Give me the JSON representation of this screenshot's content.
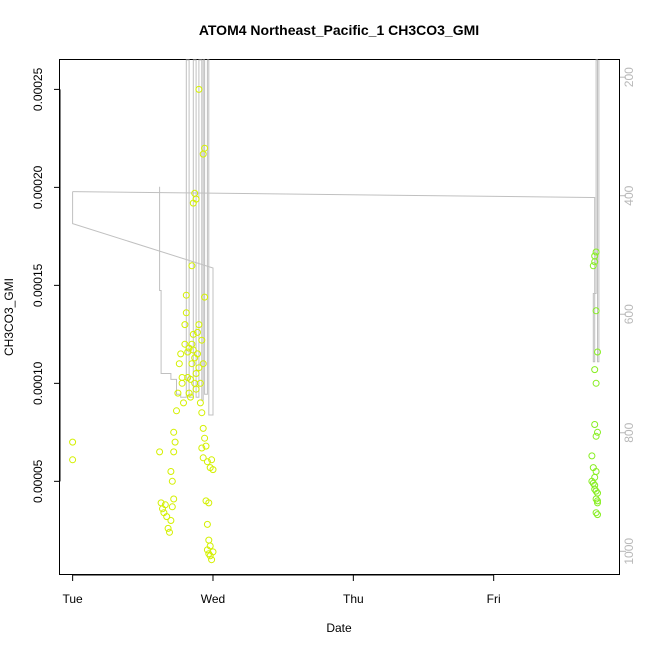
{
  "chart_data": {
    "type": "scatter",
    "title": "ATOM4 Northeast_Pacific_1 CH3CO3_GMI",
    "xlabel": "Date",
    "ylabel": "CH3CO3_GMI",
    "x_ticks": [
      "Tue",
      "Wed",
      "Thu",
      "Fri"
    ],
    "xlim": [
      -0.09,
      3.9
    ],
    "ylim": [
      2.2e-06,
      0.000265
    ],
    "y_ticks": [
      "0.00005",
      "0.00010",
      "0.00015",
      "0.00020",
      "0.00025"
    ],
    "y_tick_values": [
      5e-05,
      0.0001,
      0.00015,
      0.0002,
      0.00025
    ],
    "y2_ticks": [
      "200",
      "400",
      "600",
      "800",
      "1000"
    ],
    "y2_tick_values": [
      200,
      400,
      600,
      800,
      1000
    ],
    "y2lim": [
      1040,
      171
    ],
    "grid": false,
    "colors": {
      "points_a": "#d4f000",
      "points_b": "#86ee20",
      "line": "#c0c0c0"
    },
    "series": [
      {
        "values": [
          [
            0.0,
            7e-05
          ],
          [
            0.0,
            6.1e-05
          ],
          [
            0.62,
            6.5e-05
          ],
          [
            0.63,
            3.9e-05
          ],
          [
            0.64,
            3.6e-05
          ],
          [
            0.65,
            3.4e-05
          ],
          [
            0.66,
            3.8e-05
          ],
          [
            0.67,
            3.2e-05
          ],
          [
            0.68,
            2.6e-05
          ],
          [
            0.69,
            2.4e-05
          ],
          [
            0.7,
            3e-05
          ],
          [
            0.71,
            3.7e-05
          ],
          [
            0.72,
            4.1e-05
          ],
          [
            0.7,
            5.5e-05
          ],
          [
            0.71,
            5e-05
          ],
          [
            0.72,
            6.5e-05
          ],
          [
            0.73,
            7e-05
          ],
          [
            0.72,
            7.5e-05
          ],
          [
            0.74,
            8.6e-05
          ],
          [
            0.75,
            9.5e-05
          ],
          [
            0.76,
            0.00011
          ],
          [
            0.77,
            0.000115
          ],
          [
            0.78,
            0.000103
          ],
          [
            0.78,
            0.0001
          ],
          [
            0.79,
            9e-05
          ],
          [
            0.8,
            0.00012
          ],
          [
            0.8,
            0.00013
          ],
          [
            0.81,
            0.000145
          ],
          [
            0.81,
            0.000136
          ],
          [
            0.82,
            0.000116
          ],
          [
            0.82,
            0.000103
          ],
          [
            0.83,
            0.000118
          ],
          [
            0.83,
            9.5e-05
          ],
          [
            0.84,
            9.3e-05
          ],
          [
            0.84,
            0.000102
          ],
          [
            0.85,
            0.00011
          ],
          [
            0.85,
            0.00012
          ],
          [
            0.86,
            0.000125
          ],
          [
            0.86,
            0.000117
          ],
          [
            0.87,
            0.000113
          ],
          [
            0.87,
            0.0001
          ],
          [
            0.88,
            9.7e-05
          ],
          [
            0.88,
            0.000105
          ],
          [
            0.89,
            0.000115
          ],
          [
            0.89,
            0.000126
          ],
          [
            0.9,
            0.00013
          ],
          [
            0.9,
            0.000108
          ],
          [
            0.85,
            0.00016
          ],
          [
            0.86,
            0.000192
          ],
          [
            0.87,
            0.000197
          ],
          [
            0.88,
            0.000194
          ],
          [
            0.9,
            0.00025
          ],
          [
            0.91,
            0.0001
          ],
          [
            0.91,
            9e-05
          ],
          [
            0.92,
            8.5e-05
          ],
          [
            0.92,
            6.7e-05
          ],
          [
            0.93,
            6.2e-05
          ],
          [
            0.93,
            7.7e-05
          ],
          [
            0.94,
            7.2e-05
          ],
          [
            0.95,
            6.8e-05
          ],
          [
            0.96,
            6e-05
          ],
          [
            0.93,
            0.000217
          ],
          [
            0.94,
            0.00022
          ],
          [
            0.94,
            0.000144
          ],
          [
            0.92,
            0.000122
          ],
          [
            0.93,
            0.00011
          ],
          [
            0.95,
            4e-05
          ],
          [
            0.96,
            2.8e-05
          ],
          [
            0.97,
            2e-05
          ],
          [
            0.98,
            1.7e-05
          ],
          [
            0.96,
            1.5e-05
          ],
          [
            0.97,
            1.3e-05
          ],
          [
            0.98,
            1.2e-05
          ],
          [
            0.99,
            1e-05
          ],
          [
            1.0,
            1.4e-05
          ],
          [
            0.97,
            3.9e-05
          ],
          [
            0.98,
            5.7e-05
          ],
          [
            0.99,
            6.1e-05
          ],
          [
            1.0,
            5.6e-05
          ]
        ]
      },
      {
        "values": [
          [
            3.71,
            0.00016
          ],
          [
            3.72,
            0.000162
          ],
          [
            3.72,
            0.000165
          ],
          [
            3.73,
            0.000167
          ],
          [
            3.73,
            0.000137
          ],
          [
            3.74,
            0.000116
          ],
          [
            3.72,
            0.000107
          ],
          [
            3.73,
            0.0001
          ],
          [
            3.72,
            7.9e-05
          ],
          [
            3.73,
            7.3e-05
          ],
          [
            3.74,
            7.5e-05
          ],
          [
            3.7,
            6.3e-05
          ],
          [
            3.71,
            5.7e-05
          ],
          [
            3.72,
            5.2e-05
          ],
          [
            3.73,
            5.5e-05
          ],
          [
            3.7,
            5e-05
          ],
          [
            3.71,
            4.9e-05
          ],
          [
            3.72,
            4.8e-05
          ],
          [
            3.72,
            4.6e-05
          ],
          [
            3.73,
            4.5e-05
          ],
          [
            3.74,
            4.4e-05
          ],
          [
            3.73,
            4.1e-05
          ],
          [
            3.74,
            4e-05
          ],
          [
            3.73,
            3.4e-05
          ],
          [
            3.74,
            3.3e-05
          ],
          [
            3.74,
            3.9e-05
          ]
        ]
      }
    ],
    "pressure_profile": [
      [
        0.0,
        393
      ],
      [
        0.0,
        447
      ],
      [
        1.0,
        522
      ],
      [
        1.0,
        525
      ],
      [
        1.0,
        770
      ],
      [
        0.97,
        770
      ],
      [
        0.97,
        171
      ],
      [
        0.96,
        171
      ],
      [
        0.96,
        735
      ],
      [
        0.94,
        735
      ],
      [
        0.94,
        171
      ],
      [
        0.93,
        171
      ],
      [
        0.93,
        745
      ],
      [
        0.92,
        745
      ],
      [
        0.92,
        171
      ],
      [
        0.9,
        171
      ],
      [
        0.9,
        740
      ],
      [
        0.88,
        740
      ],
      [
        0.88,
        171
      ],
      [
        0.86,
        171
      ],
      [
        0.86,
        740
      ],
      [
        0.83,
        740
      ],
      [
        0.83,
        171
      ],
      [
        0.81,
        171
      ],
      [
        0.81,
        740
      ],
      [
        0.78,
        740
      ],
      [
        0.77,
        740
      ],
      [
        0.77,
        735
      ],
      [
        0.74,
        735
      ],
      [
        0.74,
        710
      ],
      [
        0.7,
        710
      ],
      [
        0.7,
        700
      ],
      [
        0.63,
        700
      ],
      [
        0.63,
        560
      ],
      [
        0.62,
        560
      ],
      [
        0.62,
        385
      ]
    ],
    "pressure_profile_2": [
      [
        0.0,
        393
      ],
      [
        3.7,
        403
      ],
      [
        3.72,
        403
      ],
      [
        3.72,
        680
      ],
      [
        3.71,
        680
      ],
      [
        3.71,
        565
      ],
      [
        3.73,
        565
      ],
      [
        3.73,
        171
      ],
      [
        3.74,
        171
      ],
      [
        3.74,
        680
      ],
      [
        3.75,
        680
      ],
      [
        3.75,
        171
      ]
    ]
  }
}
